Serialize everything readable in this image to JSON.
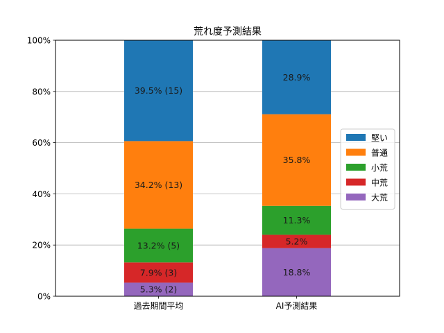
{
  "chart_data": {
    "type": "bar",
    "stacked": true,
    "title": "荒れ度予測結果",
    "xlabel": "",
    "ylabel": "",
    "categories": [
      "過去期間平均",
      "AI予測結果"
    ],
    "ylim": [
      0,
      100
    ],
    "yticks": [
      {
        "value": 0,
        "label": "0%"
      },
      {
        "value": 20,
        "label": "20%"
      },
      {
        "value": 40,
        "label": "40%"
      },
      {
        "value": 60,
        "label": "60%"
      },
      {
        "value": 80,
        "label": "80%"
      },
      {
        "value": 100,
        "label": "100%"
      }
    ],
    "grid": "horizontal",
    "legend_position": "right",
    "series": [
      {
        "name": "大荒",
        "color": "#9467bd",
        "values": [
          5.3,
          18.8
        ],
        "labels": [
          "5.3% (2)",
          "18.8%"
        ]
      },
      {
        "name": "中荒",
        "color": "#d62728",
        "values": [
          7.9,
          5.2
        ],
        "labels": [
          "7.9% (3)",
          "5.2%"
        ]
      },
      {
        "name": "小荒",
        "color": "#2ca02c",
        "values": [
          13.2,
          11.3
        ],
        "labels": [
          "13.2% (5)",
          "11.3%"
        ]
      },
      {
        "name": "普通",
        "color": "#ff7f0e",
        "values": [
          34.2,
          35.8
        ],
        "labels": [
          "34.2% (13)",
          "35.8%"
        ]
      },
      {
        "name": "堅い",
        "color": "#1f77b4",
        "values": [
          39.5,
          28.9
        ],
        "labels": [
          "39.5% (15)",
          "28.9%"
        ]
      }
    ],
    "legend_order": [
      "堅い",
      "普通",
      "小荒",
      "中荒",
      "大荒"
    ]
  }
}
